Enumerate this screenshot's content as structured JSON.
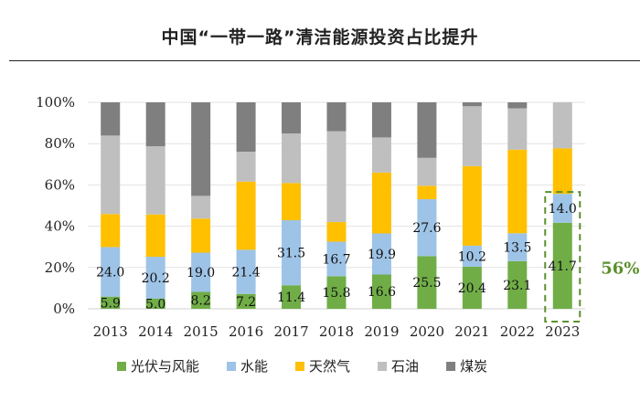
{
  "chart_data": {
    "type": "bar",
    "stacked": true,
    "title": "中国“一带一路”清洁能源投资占比提升",
    "categories": [
      "2013",
      "2014",
      "2015",
      "2016",
      "2017",
      "2018",
      "2019",
      "2020",
      "2021",
      "2022",
      "2023"
    ],
    "yticks": [
      "0%",
      "20%",
      "40%",
      "60%",
      "80%",
      "100%"
    ],
    "ylim": [
      0,
      100
    ],
    "series": [
      {
        "name": "光伏与风能",
        "color": "#70ad47",
        "values": [
          5.9,
          5.0,
          8.2,
          7.2,
          11.4,
          15.8,
          16.6,
          25.5,
          20.4,
          23.1,
          41.7
        ]
      },
      {
        "name": "水能",
        "color": "#9dc3e6",
        "values": [
          24.0,
          20.2,
          19.0,
          21.4,
          31.5,
          16.7,
          19.9,
          27.6,
          10.2,
          13.5,
          14.0
        ]
      },
      {
        "name": "天然气",
        "color": "#ffc000",
        "values": [
          16.0,
          20.5,
          16.5,
          33.0,
          18.0,
          9.5,
          29.5,
          6.5,
          38.5,
          40.5,
          22.0
        ]
      },
      {
        "name": "石油",
        "color": "#bfbfbf",
        "values": [
          38.0,
          33.0,
          11.0,
          14.5,
          24.0,
          44.0,
          17.0,
          13.5,
          29.0,
          20.0,
          22.3
        ]
      },
      {
        "name": "煤炭",
        "color": "#7f7f7f",
        "values": [
          16.1,
          21.3,
          45.3,
          23.9,
          15.1,
          14.0,
          17.0,
          26.9,
          1.9,
          2.9,
          0.0
        ]
      }
    ],
    "labels": {
      "光伏与风能": [
        "5.9",
        "5.0",
        "8.2",
        "7.2",
        "11.4",
        "15.8",
        "16.6",
        "25.5",
        "20.4",
        "23.1",
        "41.7"
      ],
      "水能": [
        "24.0",
        "20.2",
        "19.0",
        "21.4",
        "31.5",
        "16.7",
        "19.9",
        "27.6",
        "10.2",
        "13.5",
        "14.0"
      ]
    },
    "highlight": {
      "category": "2023",
      "label": "56%",
      "color": "#5b8f2d"
    },
    "legend": "bottom"
  }
}
